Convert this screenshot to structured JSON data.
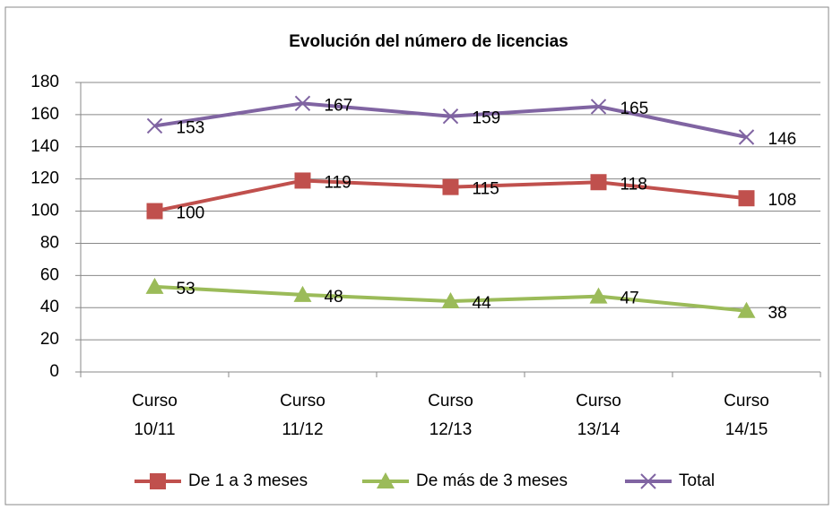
{
  "chart_data": {
    "type": "line",
    "title": "Evolución del número de licencias",
    "categories": [
      "Curso 10/11",
      "Curso 11/12",
      "Curso 12/13",
      "Curso 13/14",
      "Curso 14/15"
    ],
    "series": [
      {
        "name": "De 1 a 3 meses",
        "color": "#c0504d",
        "marker": "square",
        "values": [
          100,
          119,
          115,
          118,
          108
        ]
      },
      {
        "name": "De más de 3 meses",
        "color": "#9bbb59",
        "marker": "triangle",
        "values": [
          53,
          48,
          44,
          47,
          38
        ]
      },
      {
        "name": "Total",
        "color": "#8064a2",
        "marker": "x",
        "values": [
          153,
          167,
          159,
          165,
          146
        ]
      }
    ],
    "ylim": [
      0,
      180
    ],
    "yticks": [
      0,
      20,
      40,
      60,
      80,
      100,
      120,
      140,
      160,
      180
    ],
    "grid": true,
    "legend": "bottom"
  }
}
